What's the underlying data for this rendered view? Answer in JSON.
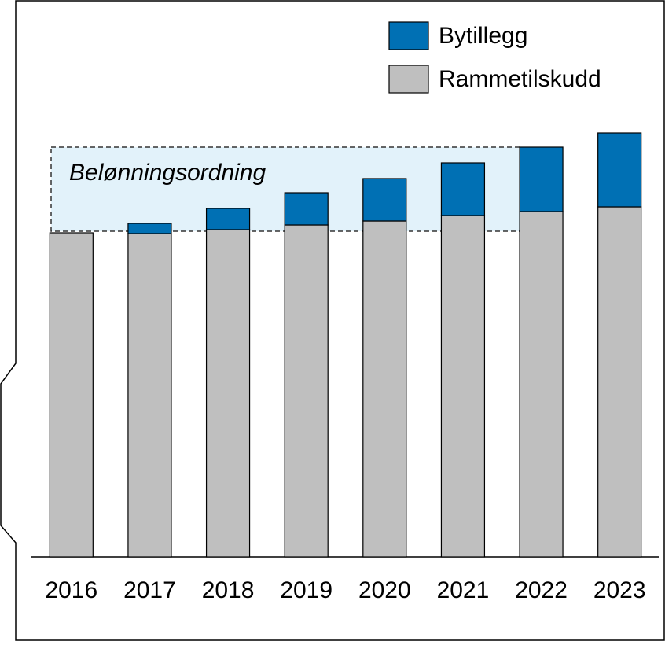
{
  "chart_data": {
    "type": "bar",
    "stacked": true,
    "categories": [
      "2016",
      "2017",
      "2018",
      "2019",
      "2020",
      "2021",
      "2022",
      "2023"
    ],
    "series": [
      {
        "name": "Rammetilskudd",
        "color": "#bfbfbf",
        "values": [
          412,
          411,
          416,
          422,
          427,
          434,
          439,
          445
        ]
      },
      {
        "name": "Bytillegg",
        "color": "#0070b4",
        "values": [
          0,
          13,
          27,
          41,
          54,
          67,
          82,
          94
        ]
      }
    ],
    "ylim": [
      0,
      540
    ],
    "annotation": "Belønningsordning"
  }
}
